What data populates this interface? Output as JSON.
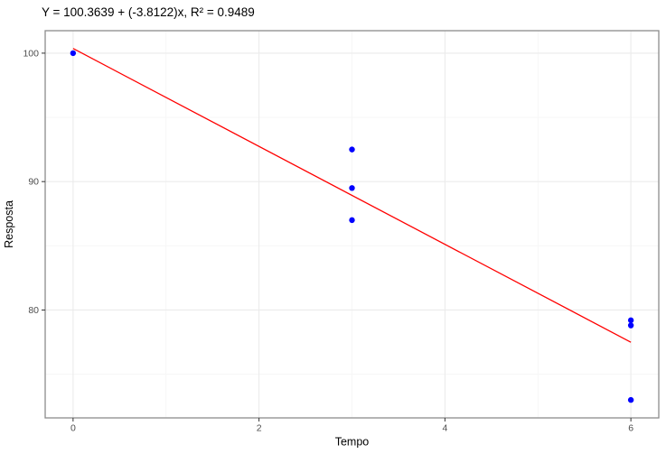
{
  "title": "Y = 100.3639 + (-3.8122)x, R² = 0.9489",
  "chart_data": {
    "type": "scatter",
    "title": "Y = 100.3639 + (-3.8122)x, R² = 0.9489",
    "xlabel": "Tempo",
    "ylabel": "Resposta",
    "points": [
      {
        "x": 0,
        "y": 100.0
      },
      {
        "x": 3,
        "y": 92.5
      },
      {
        "x": 3,
        "y": 89.5
      },
      {
        "x": 3,
        "y": 87.0
      },
      {
        "x": 6,
        "y": 79.2
      },
      {
        "x": 6,
        "y": 78.8
      },
      {
        "x": 6,
        "y": 73.0
      }
    ],
    "regression": {
      "equation": "Y = 100.3639 + (-3.8122)x",
      "intercept": 100.3639,
      "slope": -3.8122,
      "r_squared": 0.9489,
      "line_x_range": [
        0,
        6
      ]
    },
    "x_ticks": [
      0,
      2,
      4,
      6
    ],
    "y_ticks": [
      80,
      90,
      100
    ],
    "x_minor_ticks": [
      1,
      3,
      5
    ],
    "y_minor_ticks": [
      75,
      85,
      95
    ],
    "xlim": [
      -0.3,
      6.3
    ],
    "ylim": [
      71.6,
      101.75
    ],
    "grid": true,
    "legend": false
  },
  "colors": {
    "background": "#ffffff",
    "panel_bg": "#ffffff",
    "panel_border": "#8c8c8c",
    "grid_major": "#ebebeb",
    "grid_minor": "#f6f6f6",
    "point": "#0000ff",
    "regression_line": "#ff0000",
    "tick": "#333333",
    "tick_label": "#4d4d4d",
    "axis_title": "#000000",
    "title": "#000000"
  }
}
